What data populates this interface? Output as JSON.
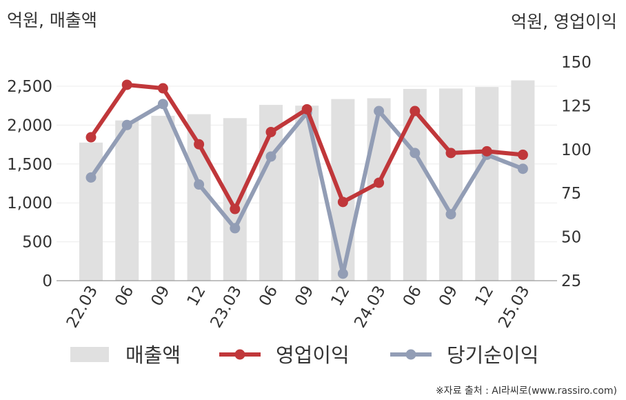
{
  "chart_data": {
    "type": "bar+line",
    "categories": [
      "22.03",
      "06",
      "09",
      "12",
      "23.03",
      "06",
      "09",
      "12",
      "24.03",
      "06",
      "09",
      "12",
      "25.03"
    ],
    "left_axis": {
      "label": "억원, 매출액",
      "ylim": [
        0,
        2500
      ],
      "ticks": [
        0,
        500,
        1000,
        1500,
        2000,
        2500
      ],
      "tick_labels": [
        "0",
        "500",
        "1,000",
        "1,500",
        "2,000",
        "2,500"
      ]
    },
    "right_axis": {
      "label": "억원, 영업이익",
      "ylim": [
        25,
        150
      ],
      "ticks": [
        25,
        50,
        75,
        100,
        125,
        150
      ],
      "tick_labels": [
        "25",
        "50",
        "75",
        "100",
        "125",
        "150"
      ]
    },
    "series": [
      {
        "name": "매출액",
        "type": "bar",
        "axis": "left",
        "color": "#e0e0e0",
        "values": [
          1775,
          2060,
          2120,
          2140,
          2090,
          2260,
          2250,
          2335,
          2345,
          2465,
          2470,
          2490,
          2575
        ]
      },
      {
        "name": "영업이익",
        "type": "line",
        "axis": "right",
        "color": "#c0373a",
        "values": [
          107,
          137,
          135,
          103,
          66,
          110,
          123,
          70,
          81,
          122,
          98,
          99,
          97
        ]
      },
      {
        "name": "당기순이익",
        "type": "line",
        "axis": "right",
        "color": "#929db5",
        "values": [
          84,
          114,
          126,
          80,
          55,
          96,
          121,
          29,
          122,
          98,
          63,
          97,
          89
        ]
      }
    ],
    "grid": true,
    "legend_position": "bottom"
  },
  "footer": {
    "source": "※자료 출처 : AI라씨로(www.rassiro.com)"
  }
}
